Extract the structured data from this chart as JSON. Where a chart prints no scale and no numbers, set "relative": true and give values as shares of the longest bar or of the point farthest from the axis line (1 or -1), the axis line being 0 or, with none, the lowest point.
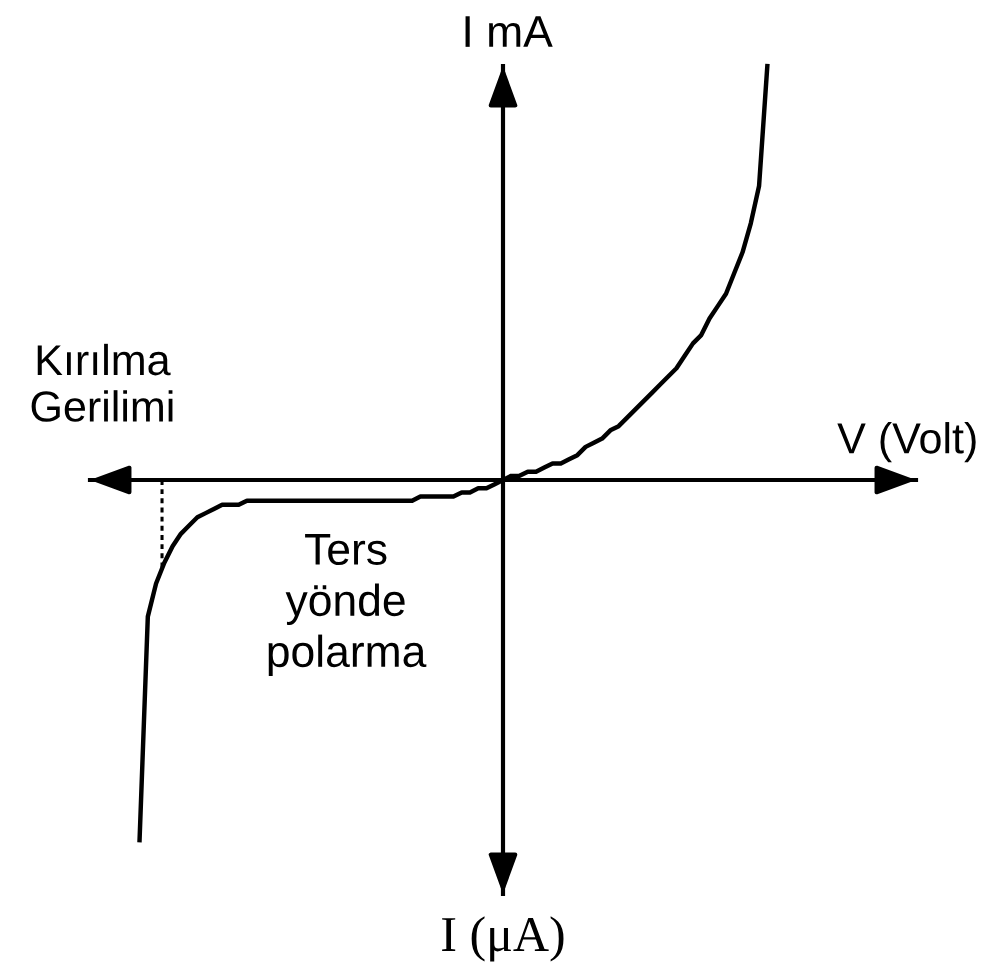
{
  "chart_data": {
    "type": "line",
    "relative": true,
    "xlabel": "V (Volt)",
    "ylabel": "I mA",
    "annotations": [
      "I (μA)",
      "Ters\nyönde\npolarma",
      "Kırılma\nGerilimi"
    ],
    "categories": [
      null,
      null,
      null,
      null,
      null,
      null,
      null,
      null,
      null,
      null,
      null,
      null,
      null,
      null,
      null,
      null,
      null,
      null,
      null,
      null,
      null,
      null,
      null,
      null,
      null,
      null,
      null,
      null,
      null,
      null,
      null,
      null,
      null,
      null,
      null,
      null,
      null,
      null,
      null,
      null,
      null,
      null,
      null,
      null,
      null,
      null,
      null,
      null,
      null,
      null,
      null,
      null,
      null,
      null,
      null,
      null,
      null,
      null,
      null,
      null,
      null,
      null,
      null,
      null,
      null,
      null,
      null,
      null,
      null,
      null,
      null,
      null,
      null,
      null,
      null,
      null,
      null,
      null,
      null,
      null,
      null,
      null,
      null,
      null,
      null,
      null,
      null,
      null,
      null,
      null,
      null,
      null,
      null,
      null,
      null,
      null,
      null,
      null,
      null,
      null,
      null
    ],
    "color": "#000000",
    "values": [
      null,
      null,
      null,
      null,
      null,
      null,
      -0.87,
      -0.33,
      -0.25,
      -0.2,
      -0.16,
      -0.13,
      -0.11,
      -0.09,
      -0.08,
      -0.07,
      -0.06,
      -0.06,
      -0.06,
      -0.05,
      -0.05,
      -0.05,
      -0.05,
      -0.05,
      -0.05,
      -0.05,
      -0.05,
      -0.05,
      -0.05,
      -0.05,
      -0.05,
      -0.05,
      -0.05,
      -0.05,
      -0.05,
      -0.05,
      -0.05,
      -0.05,
      -0.05,
      -0.05,
      -0.04,
      -0.04,
      -0.04,
      -0.04,
      -0.04,
      -0.03,
      -0.03,
      -0.02,
      -0.02,
      -0.01,
      0,
      0.01,
      0.01,
      0.02,
      0.02,
      0.03,
      0.04,
      0.04,
      0.05,
      0.06,
      0.08,
      0.09,
      0.1,
      0.12,
      0.13,
      0.15,
      0.17,
      0.19,
      0.21,
      0.23,
      0.25,
      0.27,
      0.3,
      0.33,
      0.35,
      0.39,
      0.42,
      0.45,
      0.5,
      0.55,
      0.62,
      0.71,
      1,
      null,
      null,
      null,
      null,
      null,
      null,
      null,
      null,
      null,
      null,
      null,
      null,
      null,
      null,
      null,
      null,
      null,
      null
    ]
  }
}
